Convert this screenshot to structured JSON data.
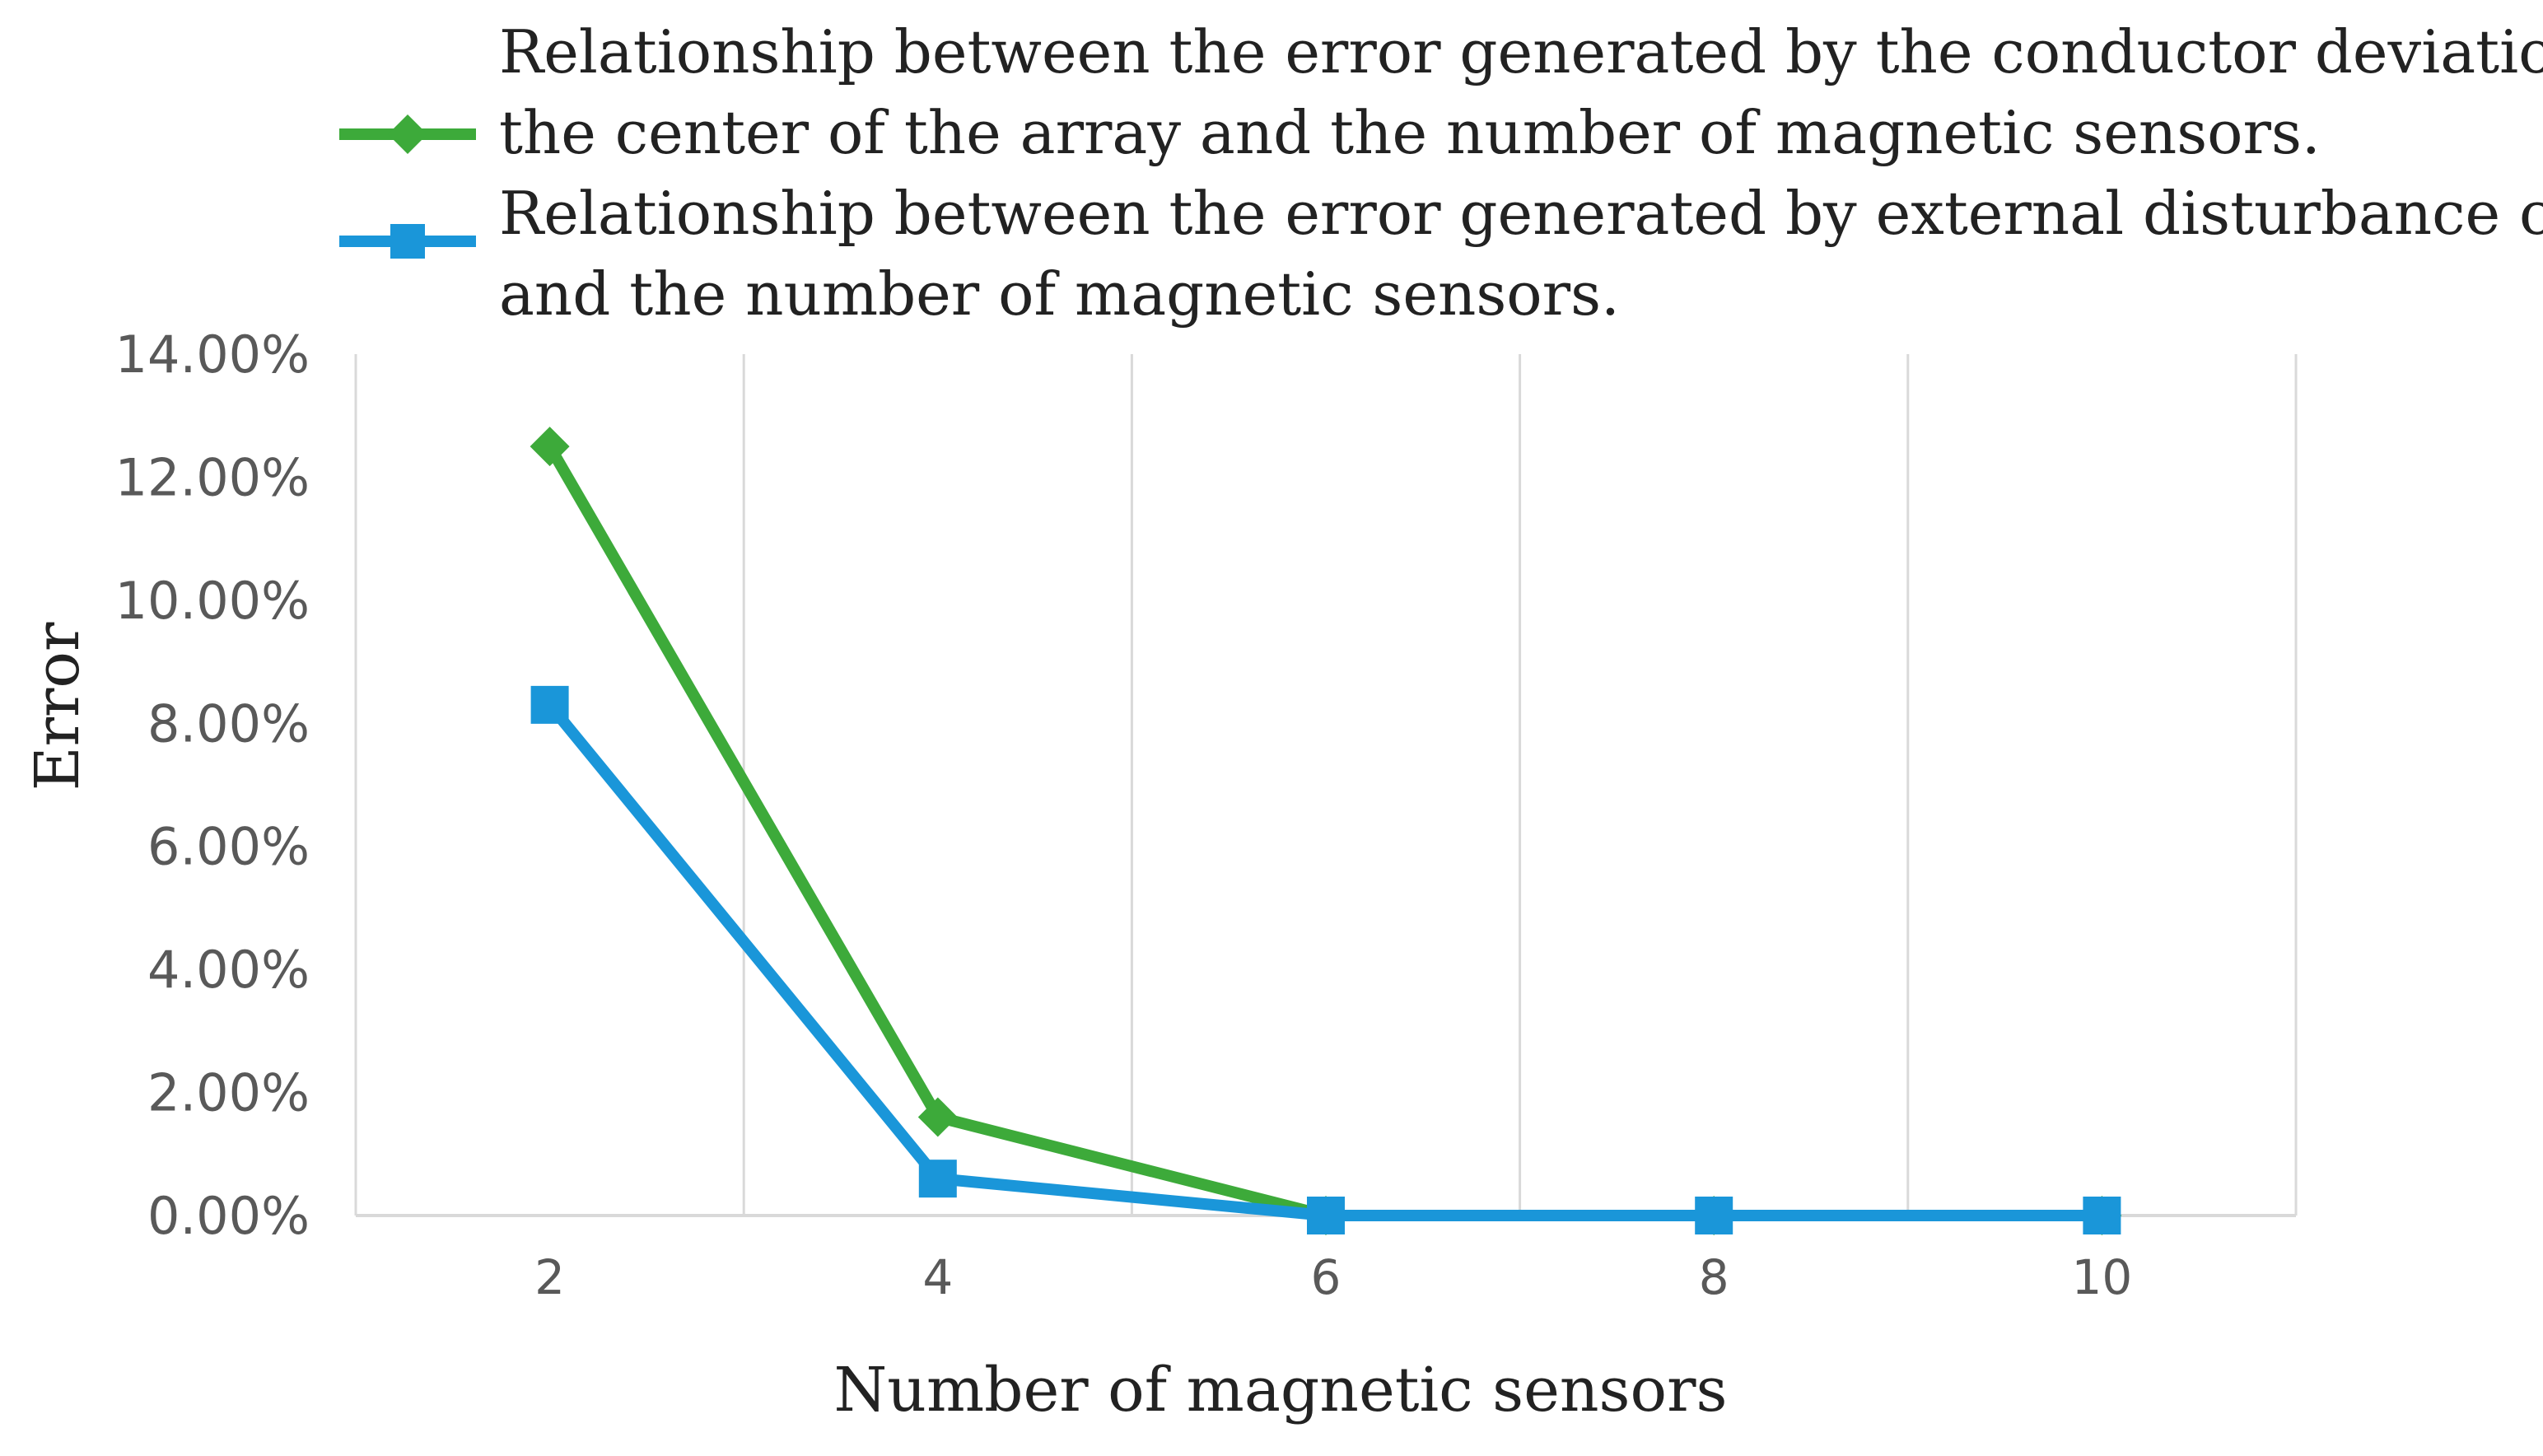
{
  "chart_data": {
    "type": "line",
    "xlabel": "Number of magnetic sensors",
    "ylabel": "Error",
    "categories": [
      "2",
      "4",
      "6",
      "8",
      "10"
    ],
    "ylim": [
      0,
      14
    ],
    "yticks": [
      "0.00%",
      "2.00%",
      "4.00%",
      "6.00%",
      "8.00%",
      "10.00%",
      "12.00%",
      "14.00%"
    ],
    "grid": {
      "vertical": true,
      "horizontal": false
    },
    "legend_position": "top",
    "series": [
      {
        "name": "Relationship between the error generated by the conductor deviation from the center of the array and the number of magnetic sensors.",
        "legend_lines": [
          "Relationship between the error generated by the conductor deviation from",
          "the center of the array and the number of magnetic sensors."
        ],
        "values": [
          12.5,
          1.6,
          0.0,
          0.0,
          0.0
        ],
        "color": "#3daa3a",
        "marker": "diamond"
      },
      {
        "name": "Relationship between the error generated by external disturbance currents and the number of magnetic sensors.",
        "legend_lines": [
          "Relationship between the error generated by external disturbance currents",
          "and the number of magnetic sensors."
        ],
        "values": [
          8.3,
          0.6,
          0.0,
          0.0,
          0.0
        ],
        "color": "#1a96d9",
        "marker": "square"
      }
    ]
  }
}
